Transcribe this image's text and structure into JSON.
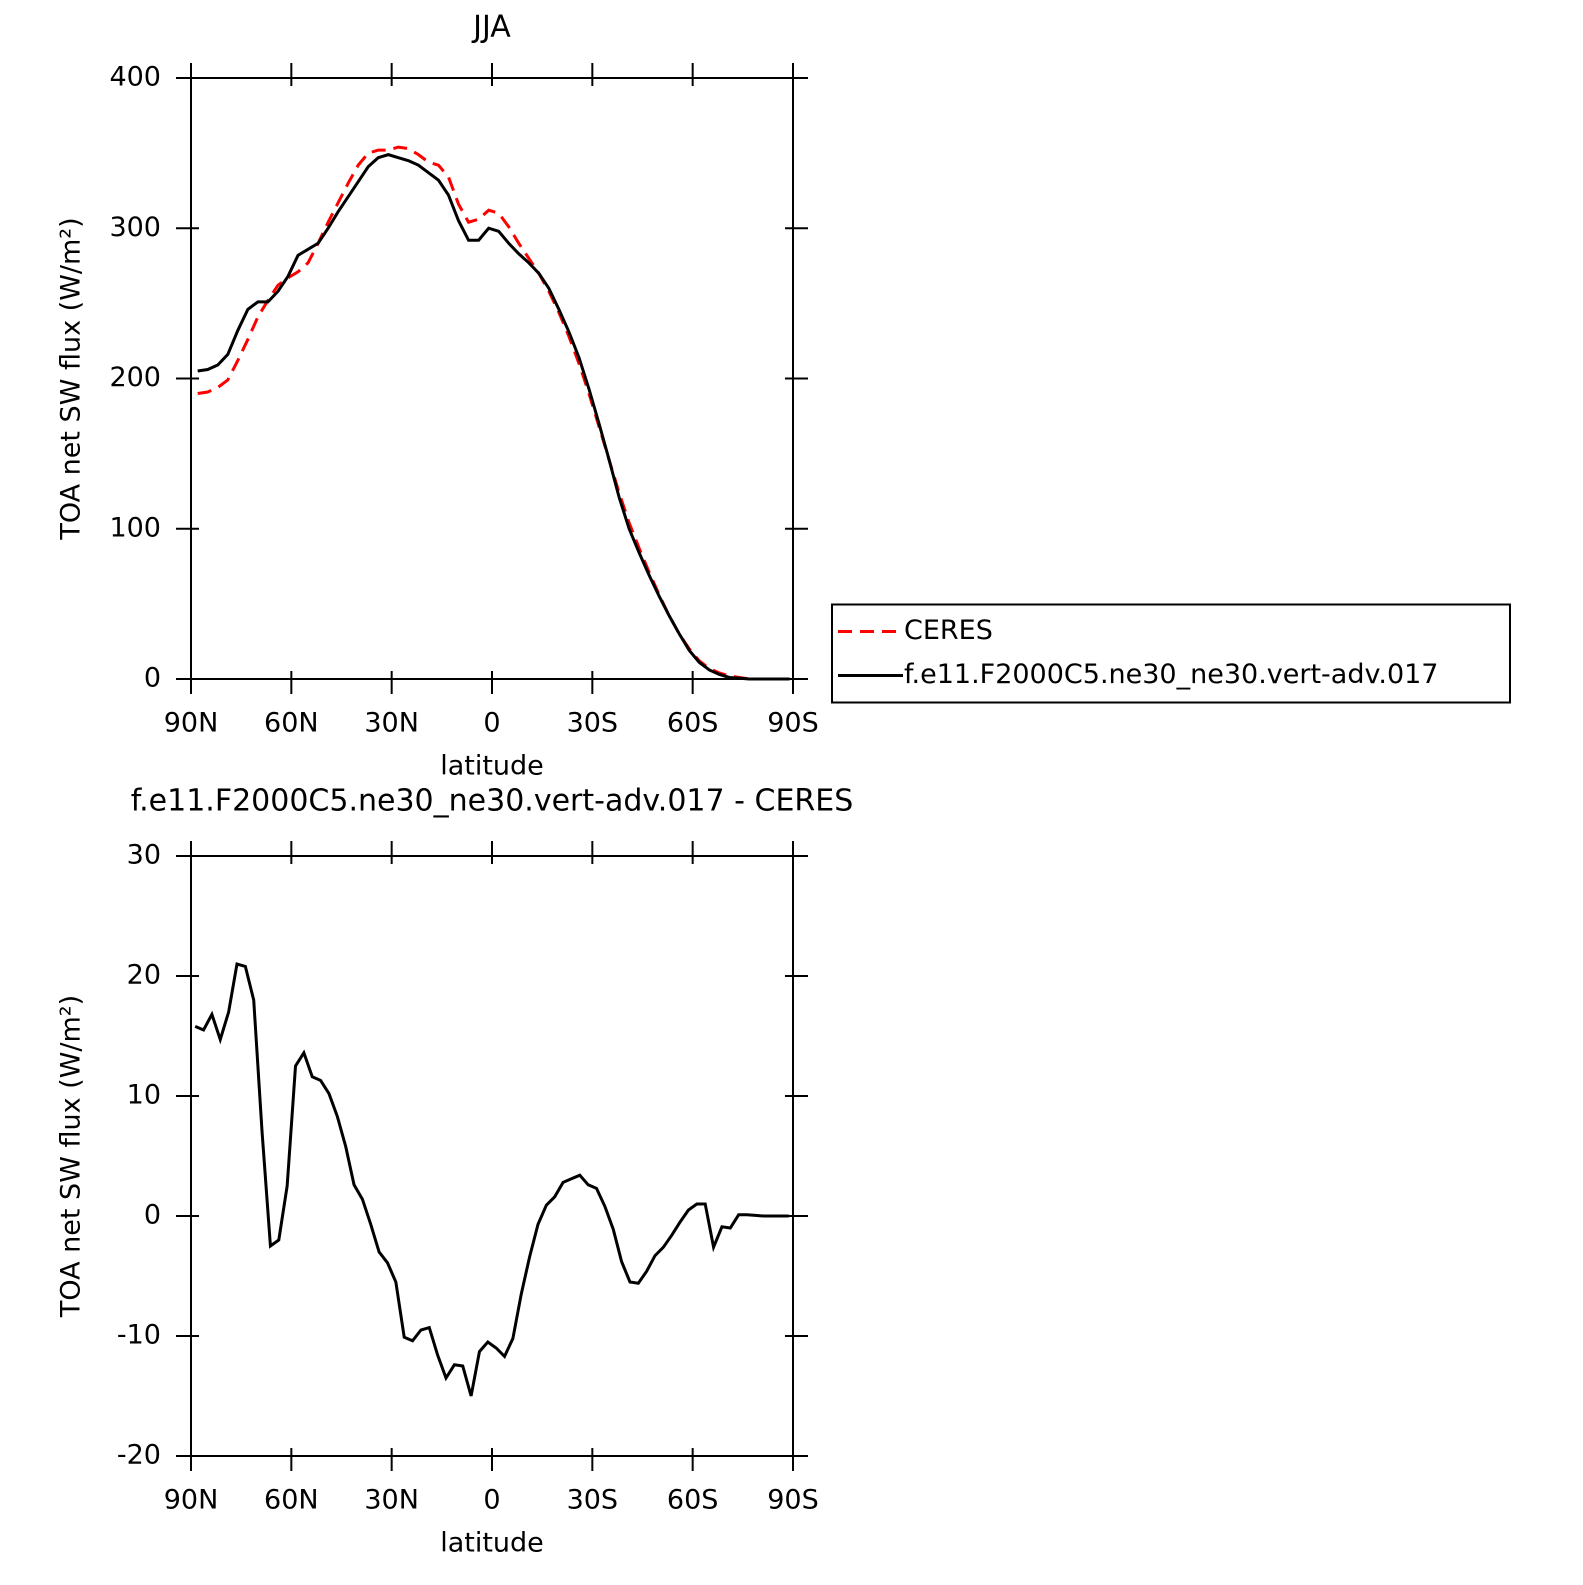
{
  "chart_data": [
    {
      "type": "line",
      "title": "JJA",
      "x_label": "latitude",
      "y_label": "TOA net SW flux (W/m²)",
      "x": [
        88,
        85,
        82,
        79,
        76,
        73,
        70,
        67,
        64,
        61,
        58,
        55,
        52,
        49,
        46,
        43,
        40,
        37,
        34,
        31,
        28,
        25,
        22,
        19,
        16,
        13,
        10,
        7,
        4,
        1,
        -2,
        -5,
        -8,
        -11,
        -14,
        -17,
        -20,
        -23,
        -26,
        -29,
        -32,
        -35,
        -38,
        -41,
        -44,
        -47,
        -50,
        -53,
        -56,
        -59,
        -62,
        -65,
        -68,
        -71,
        -74,
        -77,
        -80,
        -83,
        -86,
        -89
      ],
      "series": [
        {
          "name": "CERES",
          "color": "#ff0000",
          "linestyle": "dashed",
          "values": [
            190,
            191,
            194,
            199,
            212,
            226,
            241,
            252,
            262,
            267,
            271,
            277,
            290,
            304,
            317,
            330,
            342,
            350,
            352,
            352,
            354,
            353,
            349,
            344,
            342,
            334,
            316,
            304,
            306,
            312,
            310,
            301,
            290,
            280,
            270,
            258,
            244,
            228,
            210,
            190,
            168,
            146,
            124,
            104,
            87,
            71,
            56,
            42,
            30,
            20,
            12,
            7,
            4,
            2,
            1,
            0,
            0,
            0,
            0,
            0
          ]
        },
        {
          "name": "f.e11.F2000C5.ne30_ne30.vert-adv.017",
          "color": "#000000",
          "linestyle": "solid",
          "values": [
            205,
            206,
            209,
            216,
            232,
            246,
            251,
            251,
            258,
            268,
            282,
            286,
            290,
            300,
            311,
            321,
            331,
            341,
            347,
            349,
            347,
            345,
            342,
            337,
            332,
            322,
            305,
            292,
            292,
            300,
            298,
            290,
            283,
            277,
            270,
            260,
            246,
            231,
            214,
            193,
            170,
            146,
            121,
            100,
            84,
            69,
            55,
            42,
            30,
            19,
            11,
            6,
            3,
            1,
            0.5,
            0,
            0,
            0,
            0,
            0
          ]
        }
      ],
      "xlim": [
        90,
        -90
      ],
      "ylim": [
        0,
        400
      ],
      "xticks": [
        {
          "value": 90,
          "label": "90N"
        },
        {
          "value": 60,
          "label": "60N"
        },
        {
          "value": 30,
          "label": "30N"
        },
        0,
        {
          "value": -30,
          "label": "30S"
        },
        {
          "value": -60,
          "label": "60S"
        },
        {
          "value": -90,
          "label": "90S"
        }
      ],
      "yticks": [
        0,
        100,
        200,
        300,
        400
      ],
      "legend": "right"
    },
    {
      "type": "line",
      "title": "f.e11.F2000C5.ne30_ne30.vert-adv.017 - CERES",
      "x_label": "latitude",
      "y_label": "TOA net SW flux (W/m²)",
      "x": [
        88.75,
        86.25,
        83.75,
        81.25,
        78.75,
        76.25,
        73.75,
        71.25,
        68.75,
        66.25,
        63.75,
        61.25,
        58.75,
        56.25,
        53.75,
        51.25,
        48.75,
        46.25,
        43.75,
        41.25,
        38.75,
        36.25,
        33.75,
        31.25,
        28.75,
        26.25,
        23.75,
        21.25,
        18.75,
        16.25,
        13.75,
        11.25,
        8.75,
        6.25,
        3.75,
        1.25,
        -1.25,
        -3.75,
        -6.25,
        -8.75,
        -11.25,
        -13.75,
        -16.25,
        -18.75,
        -21.25,
        -23.75,
        -26.25,
        -28.75,
        -31.25,
        -33.75,
        -36.25,
        -38.75,
        -41.25,
        -43.75,
        -46.25,
        -48.75,
        -51.25,
        -53.75,
        -56.25,
        -58.75,
        -61.25,
        -63.75,
        -66.25,
        -68.75,
        -71.25,
        -73.75,
        -76.25,
        -78.75,
        -81.25,
        -83.75,
        -86.25,
        -88.75
      ],
      "values": [
        15.8,
        15.5,
        16.8,
        14.7,
        17,
        21,
        20.8,
        18,
        7,
        -2.5,
        -2,
        2.5,
        12.5,
        13.6,
        11.6,
        11.3,
        10.2,
        8.3,
        5.8,
        2.6,
        1.4,
        -0.7,
        -3,
        -3.9,
        -5.5,
        -10.1,
        -10.4,
        -9.5,
        -9.3,
        -11.6,
        -13.5,
        -12.4,
        -12.5,
        -15,
        -11.3,
        -10.5,
        -11,
        -11.7,
        -10.2,
        -6.5,
        -3.4,
        -0.7,
        0.9,
        1.6,
        2.8,
        3.1,
        3.4,
        2.6,
        2.3,
        0.8,
        -1.1,
        -3.8,
        -5.5,
        -5.6,
        -4.6,
        -3.3,
        -2.6,
        -1.6,
        -0.5,
        0.5,
        1,
        1,
        -2.6,
        -0.9,
        -1,
        0.1,
        0.1,
        0.05,
        0,
        0,
        0,
        0
      ],
      "color": "#000000",
      "xlim": [
        90,
        -90
      ],
      "ylim": [
        -20,
        30
      ],
      "xticks": [
        {
          "value": 90,
          "label": "90N"
        },
        {
          "value": 60,
          "label": "60N"
        },
        {
          "value": 30,
          "label": "30N"
        },
        0,
        {
          "value": -30,
          "label": "30S"
        },
        {
          "value": -60,
          "label": "60S"
        },
        {
          "value": -90,
          "label": "90S"
        }
      ],
      "yticks": [
        -20,
        -10,
        0,
        10,
        20,
        30
      ]
    }
  ]
}
